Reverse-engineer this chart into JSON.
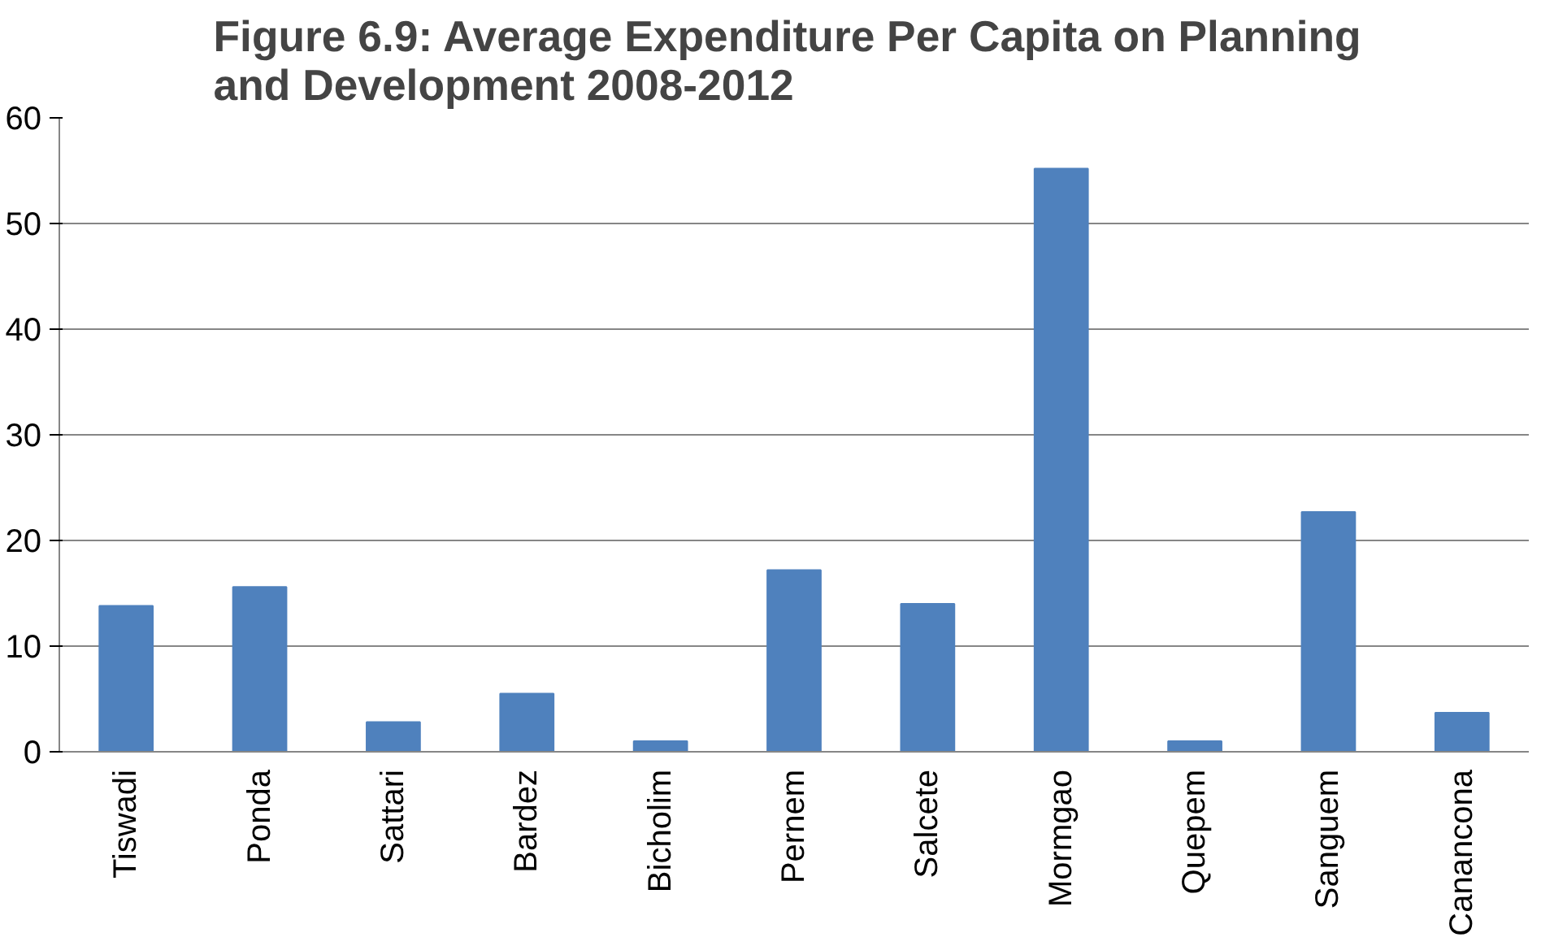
{
  "chart_data": {
    "type": "bar",
    "title": "Figure 6.9: Average Expenditure Per Capita on  Planning\nand Development  2008-2012",
    "categories": [
      "Tiswadi",
      "Ponda",
      "Sattari",
      "Bardez",
      "Bicholim",
      "Pernem",
      "Salcete",
      "Mormgao",
      "Quepem",
      "Sanguem",
      "Canancona"
    ],
    "values": [
      13.8,
      15.6,
      2.8,
      5.5,
      1.0,
      17.2,
      14.0,
      55.2,
      1.0,
      22.7,
      3.7
    ],
    "color": "#4f81bd",
    "ylim": [
      0,
      60
    ],
    "yticks": [
      0,
      10,
      20,
      30,
      40,
      50,
      60
    ],
    "grid": "y"
  }
}
